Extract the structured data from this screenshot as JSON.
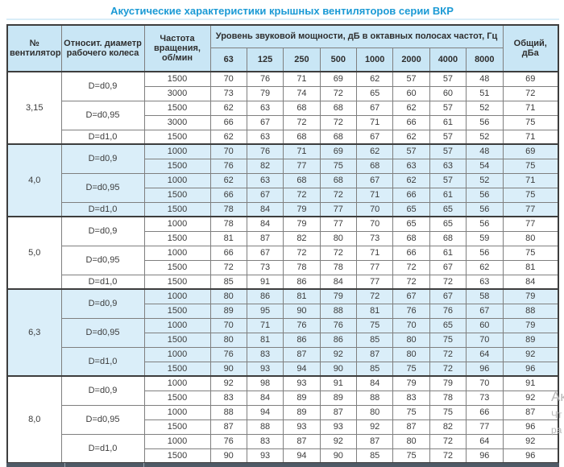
{
  "title": "Акустические характеристики крышных вентиляторов серии ВКР",
  "colors": {
    "title_blue": "#1b9ad5",
    "header_bg": "#c9e6f5",
    "shaded_row_bg": "#daeef9",
    "border_dark": "#3d3d3d",
    "border_inner": "#7f7f7f"
  },
  "table": {
    "headers": {
      "fan_no": "№ вентилятора",
      "diameter": "Относит. диаметр рабочего колеса",
      "speed": "Частота вращения, об/мин",
      "spl_group": "Уровень звуковой мощности, дБ в октавных полосах частот, Гц",
      "frequencies": [
        "63",
        "125",
        "250",
        "500",
        "1000",
        "2000",
        "4000",
        "8000"
      ],
      "total": "Общий, дБа"
    },
    "groups": [
      {
        "fan": "3,15",
        "shaded": false,
        "diameters": [
          {
            "label": "D=d0,9",
            "rows": [
              {
                "speed": "1500",
                "levels": [
                  70,
                  76,
                  71,
                  69,
                  62,
                  57,
                  57,
                  48
                ],
                "total": 69
              },
              {
                "speed": "3000",
                "levels": [
                  73,
                  79,
                  74,
                  72,
                  65,
                  60,
                  60,
                  51
                ],
                "total": 72
              }
            ]
          },
          {
            "label": "D=d0,95",
            "rows": [
              {
                "speed": "1500",
                "levels": [
                  62,
                  63,
                  68,
                  68,
                  67,
                  62,
                  57,
                  52
                ],
                "total": 71
              },
              {
                "speed": "3000",
                "levels": [
                  66,
                  67,
                  72,
                  72,
                  71,
                  66,
                  61,
                  56
                ],
                "total": 75
              }
            ]
          },
          {
            "label": "D=d1,0",
            "rows": [
              {
                "speed": "1500",
                "levels": [
                  62,
                  63,
                  68,
                  68,
                  67,
                  62,
                  57,
                  52
                ],
                "total": 71
              }
            ]
          }
        ]
      },
      {
        "fan": "4,0",
        "shaded": true,
        "diameters": [
          {
            "label": "D=d0,9",
            "rows": [
              {
                "speed": "1000",
                "levels": [
                  70,
                  76,
                  71,
                  69,
                  62,
                  57,
                  57,
                  48
                ],
                "total": 69
              },
              {
                "speed": "1500",
                "levels": [
                  76,
                  82,
                  77,
                  75,
                  68,
                  63,
                  63,
                  54
                ],
                "total": 75
              }
            ]
          },
          {
            "label": "D=d0,95",
            "rows": [
              {
                "speed": "1000",
                "levels": [
                  62,
                  63,
                  68,
                  68,
                  67,
                  62,
                  57,
                  52
                ],
                "total": 71
              },
              {
                "speed": "1500",
                "levels": [
                  66,
                  67,
                  72,
                  72,
                  71,
                  66,
                  61,
                  56
                ],
                "total": 75
              }
            ]
          },
          {
            "label": "D=d1,0",
            "rows": [
              {
                "speed": "1500",
                "levels": [
                  78,
                  84,
                  79,
                  77,
                  70,
                  65,
                  65,
                  56
                ],
                "total": 77
              }
            ]
          }
        ]
      },
      {
        "fan": "5,0",
        "shaded": false,
        "diameters": [
          {
            "label": "D=d0,9",
            "rows": [
              {
                "speed": "1000",
                "levels": [
                  78,
                  84,
                  79,
                  77,
                  70,
                  65,
                  65,
                  56
                ],
                "total": 77
              },
              {
                "speed": "1500",
                "levels": [
                  81,
                  87,
                  82,
                  80,
                  73,
                  68,
                  68,
                  59
                ],
                "total": 80
              }
            ]
          },
          {
            "label": "D=d0,95",
            "rows": [
              {
                "speed": "1000",
                "levels": [
                  66,
                  67,
                  72,
                  72,
                  71,
                  66,
                  61,
                  56
                ],
                "total": 75
              },
              {
                "speed": "1500",
                "levels": [
                  72,
                  73,
                  78,
                  78,
                  77,
                  72,
                  67,
                  62
                ],
                "total": 81
              }
            ]
          },
          {
            "label": "D=d1,0",
            "rows": [
              {
                "speed": "1500",
                "levels": [
                  85,
                  91,
                  86,
                  84,
                  77,
                  72,
                  72,
                  63
                ],
                "total": 84
              }
            ]
          }
        ]
      },
      {
        "fan": "6,3",
        "shaded": true,
        "diameters": [
          {
            "label": "D=d0,9",
            "rows": [
              {
                "speed": "1000",
                "levels": [
                  80,
                  86,
                  81,
                  79,
                  72,
                  67,
                  67,
                  58
                ],
                "total": 79
              },
              {
                "speed": "1500",
                "levels": [
                  89,
                  95,
                  90,
                  88,
                  81,
                  76,
                  76,
                  67
                ],
                "total": 88
              }
            ]
          },
          {
            "label": "D=d0,95",
            "rows": [
              {
                "speed": "1000",
                "levels": [
                  70,
                  71,
                  76,
                  76,
                  75,
                  70,
                  65,
                  60
                ],
                "total": 79
              },
              {
                "speed": "1500",
                "levels": [
                  80,
                  81,
                  86,
                  86,
                  85,
                  80,
                  75,
                  70
                ],
                "total": 89
              }
            ]
          },
          {
            "label": "D=d1,0",
            "rows": [
              {
                "speed": "1000",
                "levels": [
                  76,
                  83,
                  87,
                  92,
                  87,
                  80,
                  72,
                  64
                ],
                "total": 92
              },
              {
                "speed": "1500",
                "levels": [
                  90,
                  93,
                  94,
                  90,
                  85,
                  75,
                  72,
                  96
                ],
                "total": 96
              }
            ]
          }
        ]
      },
      {
        "fan": "8,0",
        "shaded": false,
        "diameters": [
          {
            "label": "D=d0,9",
            "rows": [
              {
                "speed": "1000",
                "levels": [
                  92,
                  98,
                  93,
                  91,
                  84,
                  79,
                  79,
                  70
                ],
                "total": 91
              },
              {
                "speed": "1500",
                "levels": [
                  83,
                  84,
                  89,
                  89,
                  88,
                  83,
                  78,
                  73
                ],
                "total": 92
              }
            ]
          },
          {
            "label": "D=d0,95",
            "rows": [
              {
                "speed": "1000",
                "levels": [
                  88,
                  94,
                  89,
                  87,
                  80,
                  75,
                  75,
                  66
                ],
                "total": 87
              },
              {
                "speed": "1500",
                "levels": [
                  87,
                  88,
                  93,
                  93,
                  92,
                  87,
                  82,
                  77
                ],
                "total": 96
              }
            ]
          },
          {
            "label": "D=d1,0",
            "rows": [
              {
                "speed": "1000",
                "levels": [
                  76,
                  83,
                  87,
                  92,
                  87,
                  80,
                  72,
                  64
                ],
                "total": 92
              },
              {
                "speed": "1500",
                "levels": [
                  90,
                  93,
                  94,
                  90,
                  85,
                  75,
                  72,
                  96
                ],
                "total": 96
              }
            ]
          }
        ]
      }
    ]
  },
  "watermark": {
    "line1": "Ак",
    "line2": "Чт",
    "line3": "ра"
  }
}
